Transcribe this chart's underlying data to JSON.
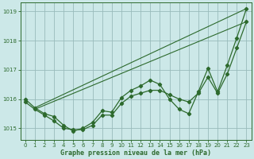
{
  "xlabel": "Graphe pression niveau de la mer (hPa)",
  "bg_color": "#cce8e8",
  "grid_color": "#99bbbb",
  "line_color": "#2d6a2d",
  "xlim": [
    -0.5,
    23.5
  ],
  "ylim": [
    1014.6,
    1019.3
  ],
  "yticks": [
    1015,
    1016,
    1017,
    1018,
    1019
  ],
  "xticks": [
    0,
    1,
    2,
    3,
    4,
    5,
    6,
    7,
    8,
    9,
    10,
    11,
    12,
    13,
    14,
    15,
    16,
    17,
    18,
    19,
    20,
    21,
    22,
    23
  ],
  "series_main": {
    "x": [
      0,
      1,
      2,
      3,
      4,
      5,
      6,
      7,
      8,
      9,
      10,
      11,
      12,
      13,
      14,
      15,
      16,
      17,
      18,
      19,
      20,
      21,
      22,
      23
    ],
    "y": [
      1016.0,
      1015.7,
      1015.5,
      1015.4,
      1015.1,
      1014.9,
      1015.0,
      1015.2,
      1015.6,
      1015.55,
      1016.05,
      1016.3,
      1016.45,
      1016.65,
      1016.5,
      1016.0,
      1015.65,
      1015.5,
      1016.25,
      1017.05,
      1016.25,
      1017.15,
      1018.1,
      1019.1
    ]
  },
  "series_smooth": {
    "x": [
      0,
      1,
      2,
      3,
      4,
      5,
      6,
      7,
      8,
      9,
      10,
      11,
      12,
      13,
      14,
      15,
      16,
      17,
      18,
      19,
      20,
      21,
      22,
      23
    ],
    "y": [
      1015.9,
      1015.65,
      1015.45,
      1015.25,
      1015.0,
      1014.95,
      1014.95,
      1015.1,
      1015.45,
      1015.45,
      1015.85,
      1016.1,
      1016.2,
      1016.3,
      1016.3,
      1016.15,
      1016.0,
      1015.9,
      1016.2,
      1016.75,
      1016.2,
      1016.85,
      1017.75,
      1018.65
    ]
  },
  "trend1": {
    "x": [
      1,
      23
    ],
    "y": [
      1015.7,
      1019.1
    ]
  },
  "trend2": {
    "x": [
      1,
      23
    ],
    "y": [
      1015.65,
      1018.65
    ]
  }
}
